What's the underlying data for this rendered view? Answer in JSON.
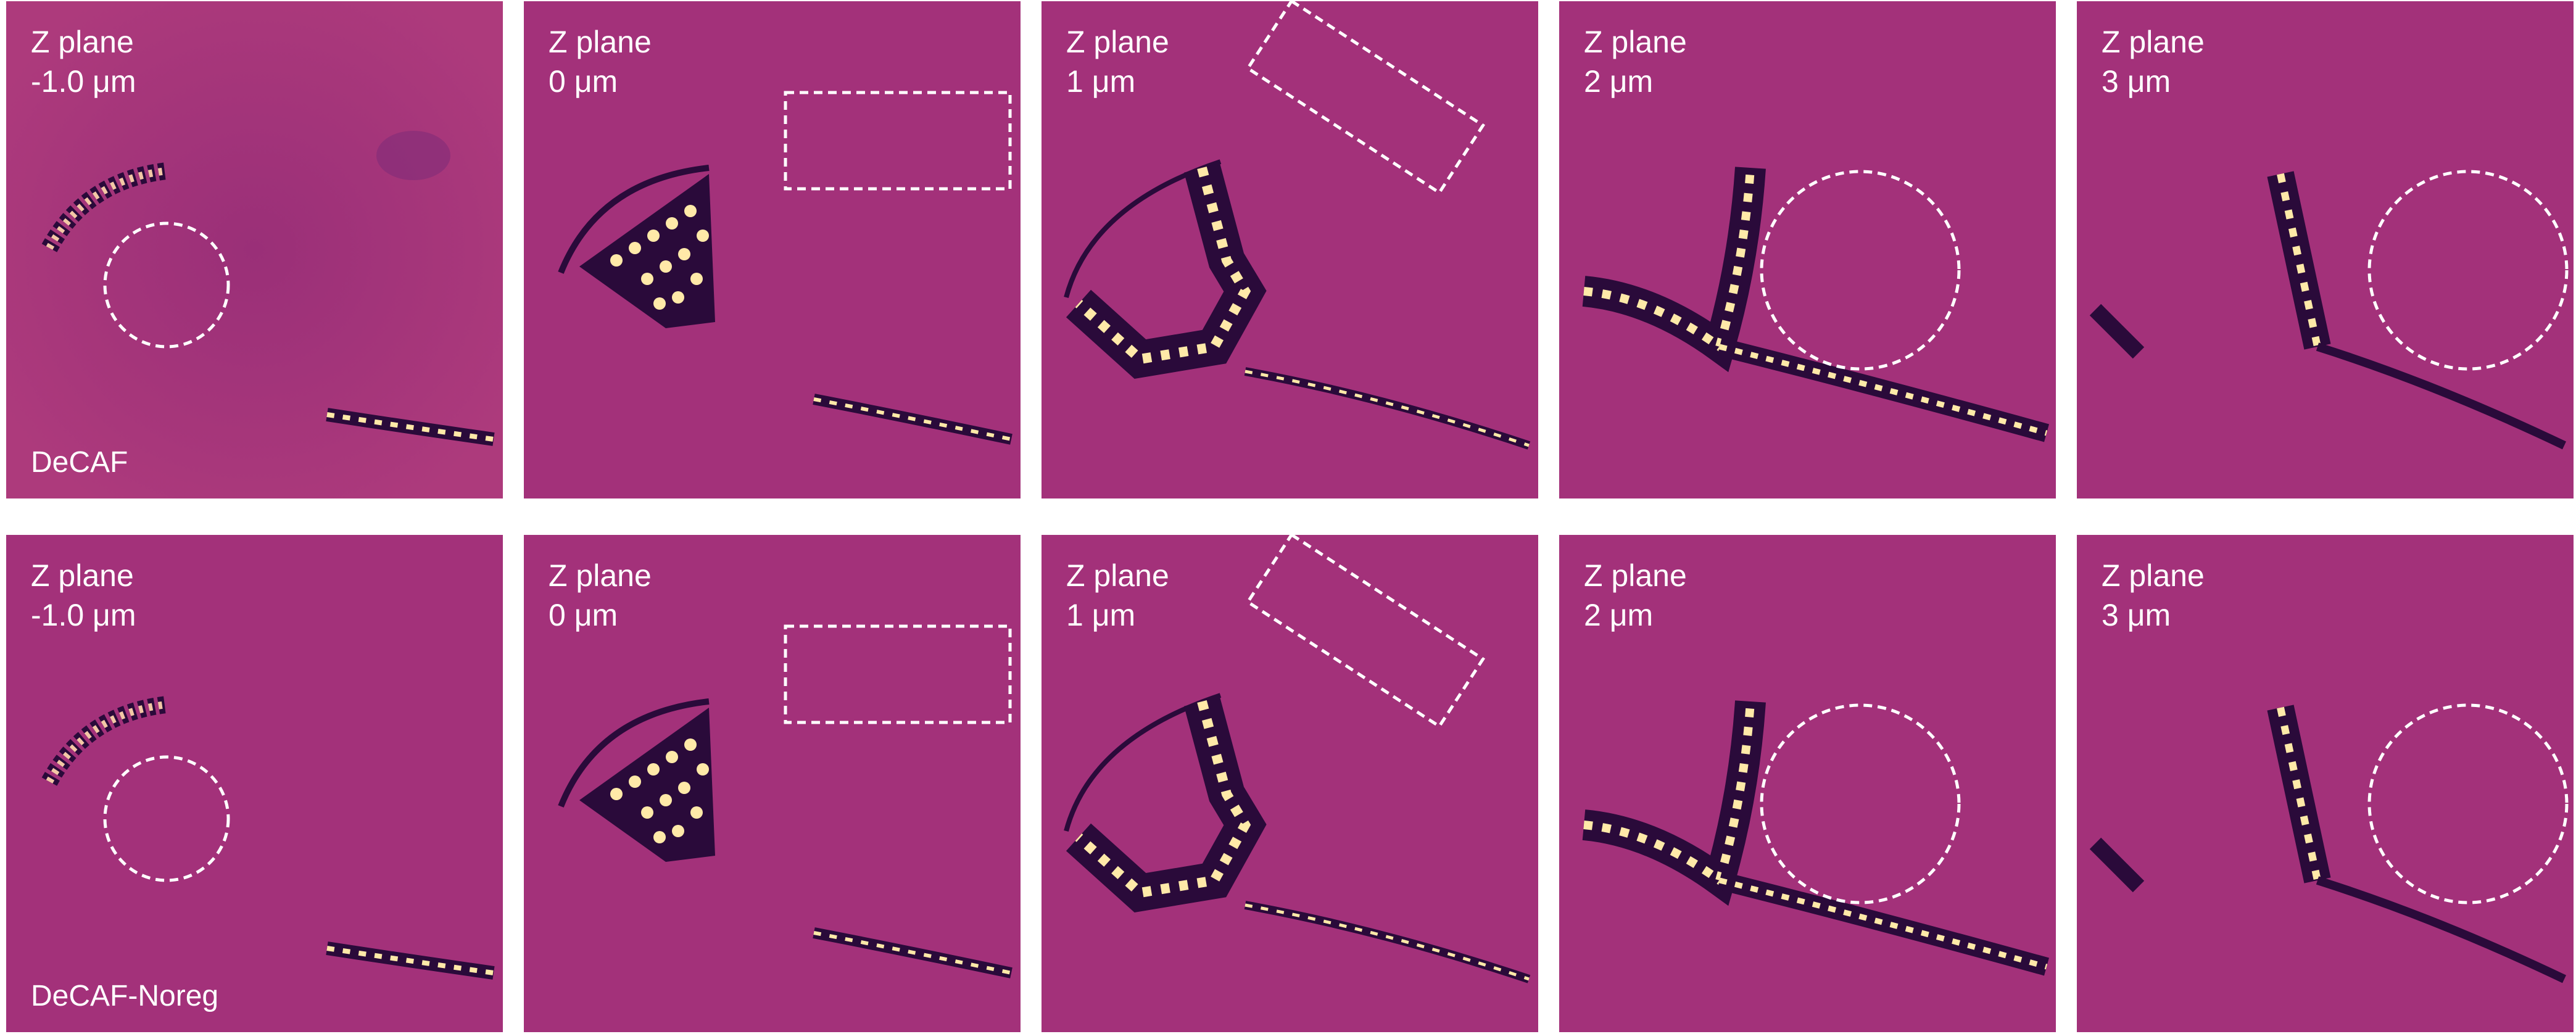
{
  "colors": {
    "background": "#ffffff",
    "panel_base": "#a3317a",
    "structure_dark": "#2a0a3a",
    "structure_light": "#ffe9a8",
    "annotation": "#ffffff"
  },
  "rows": [
    {
      "method_label": "DeCAF",
      "panels": [
        {
          "z_title": "Z plane",
          "z_value": "-1.0 μm",
          "annotation": "circle"
        },
        {
          "z_title": "Z plane",
          "z_value": "0 μm",
          "annotation": "rectangle"
        },
        {
          "z_title": "Z plane",
          "z_value": "1 μm",
          "annotation": "rotated-rectangle"
        },
        {
          "z_title": "Z plane",
          "z_value": "2 μm",
          "annotation": "circle"
        },
        {
          "z_title": "Z plane",
          "z_value": "3 μm",
          "annotation": "circle"
        }
      ]
    },
    {
      "method_label": "DeCAF-Noreg",
      "panels": [
        {
          "z_title": "Z plane",
          "z_value": "-1.0 μm",
          "annotation": "circle"
        },
        {
          "z_title": "Z plane",
          "z_value": "0 μm",
          "annotation": "rectangle"
        },
        {
          "z_title": "Z plane",
          "z_value": "1 μm",
          "annotation": "rotated-rectangle"
        },
        {
          "z_title": "Z plane",
          "z_value": "2 μm",
          "annotation": "circle"
        },
        {
          "z_title": "Z plane",
          "z_value": "3 μm",
          "annotation": "circle"
        }
      ]
    }
  ]
}
